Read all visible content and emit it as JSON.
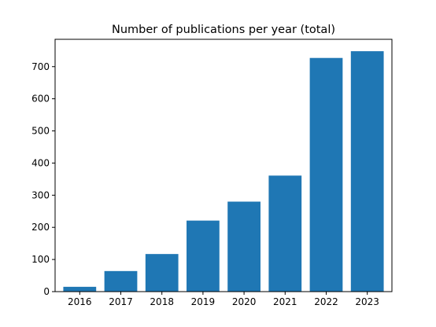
{
  "chart_data": {
    "type": "bar",
    "title": "Number of publications per year (total)",
    "xlabel": "",
    "ylabel": "",
    "categories": [
      "2016",
      "2017",
      "2018",
      "2019",
      "2020",
      "2021",
      "2022",
      "2023"
    ],
    "values": [
      15,
      64,
      117,
      221,
      280,
      361,
      727,
      748
    ],
    "ylim": [
      0,
      785
    ],
    "yticks": [
      0,
      100,
      200,
      300,
      400,
      500,
      600,
      700
    ],
    "bar_color": "#1f77b4",
    "grid": false,
    "legend": "none"
  }
}
